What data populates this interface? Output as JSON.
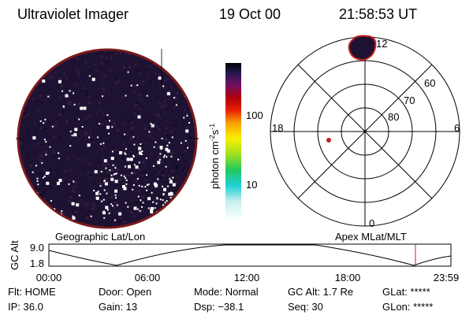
{
  "header": {
    "title": "Ultraviolet Imager",
    "date": "19 Oct 00",
    "time": "21:58:53 UT"
  },
  "geographic_panel": {
    "label": "Geographic Lat/Lon"
  },
  "colorbar": {
    "label": {
      "text": "photon cm",
      "exp1": "-2",
      "unit2": "s",
      "exp2": "-1"
    },
    "ticks": [
      "100",
      "10"
    ]
  },
  "polar_panel": {
    "label": "Apex MLat/MLT",
    "mlt_labels": [
      "12",
      "18",
      "6",
      "0"
    ],
    "mlat_labels": [
      "60",
      "70",
      "80"
    ]
  },
  "altitude_strip": {
    "axis_label": "GC Alt",
    "y_ticks": [
      "9.0",
      "1.8"
    ],
    "x_ticks": [
      "00:00",
      "06:00",
      "12:00",
      "18:00",
      "23:59"
    ]
  },
  "status": {
    "rows": [
      [
        "Flt: HOME",
        "Door: Open",
        "Mode: Normal",
        "GC Alt: 1.7 Re",
        "GLat: *****"
      ],
      [
        "IP: 36.0",
        "Gain: 13",
        "Dsp: −38.1",
        "Seq: 30",
        "GLon: *****"
      ]
    ]
  }
}
